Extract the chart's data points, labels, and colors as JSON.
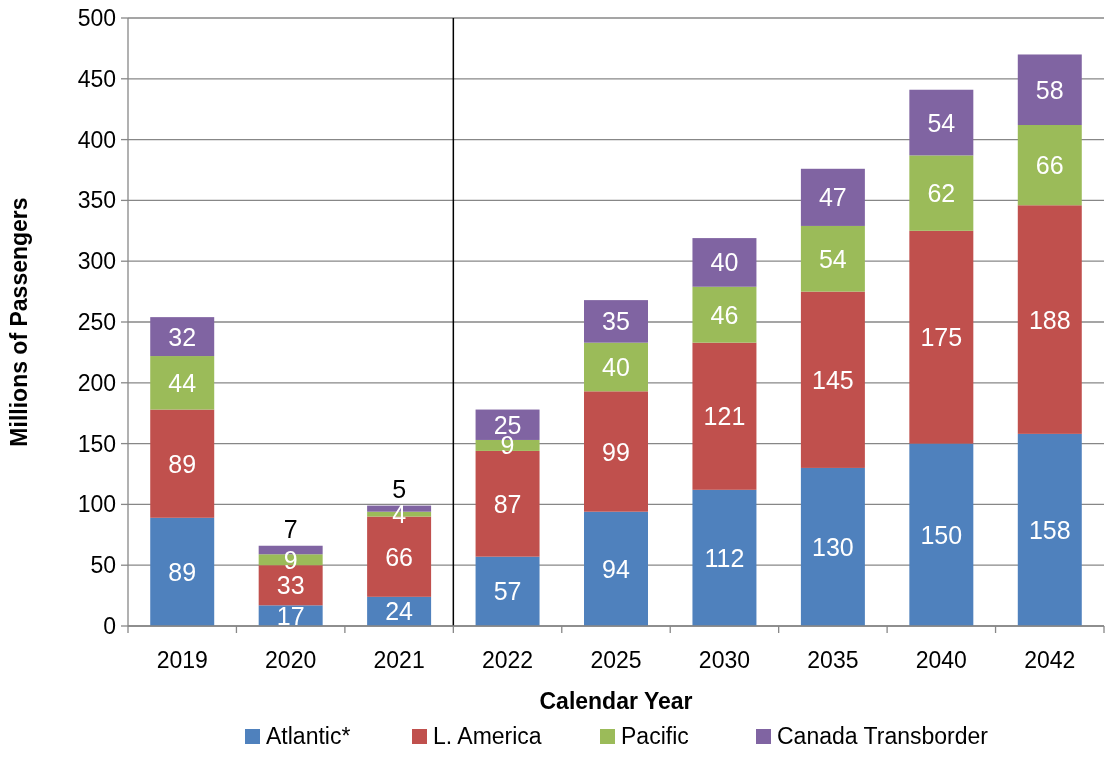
{
  "chart_data": {
    "type": "bar",
    "stacked": true,
    "xlabel": "Calendar Year",
    "ylabel": "Millions of Passengers",
    "categories": [
      "2019",
      "2020",
      "2021",
      "2022",
      "2025",
      "2030",
      "2035",
      "2040",
      "2042"
    ],
    "series": [
      {
        "name": "Atlantic*",
        "color": "#4f81bd",
        "values": [
          89,
          17,
          24,
          57,
          94,
          112,
          130,
          150,
          158
        ]
      },
      {
        "name": "L. America",
        "color": "#c0504d",
        "values": [
          89,
          33,
          66,
          87,
          99,
          121,
          145,
          175,
          188
        ]
      },
      {
        "name": "Pacific",
        "color": "#9bbb59",
        "values": [
          44,
          9,
          4,
          9,
          40,
          46,
          54,
          62,
          66
        ]
      },
      {
        "name": "Canada Transborder",
        "color": "#8064a2",
        "values": [
          32,
          7,
          5,
          25,
          35,
          40,
          47,
          54,
          58
        ]
      }
    ],
    "ylim": [
      0,
      500
    ],
    "yticks": [
      0,
      50,
      100,
      150,
      200,
      250,
      300,
      350,
      400,
      450,
      500
    ],
    "grid": "y",
    "legend": "bottom",
    "data_labels": true,
    "ref_lines": [
      {
        "axis": "x",
        "value": "2022",
        "color": "#000000"
      }
    ]
  }
}
